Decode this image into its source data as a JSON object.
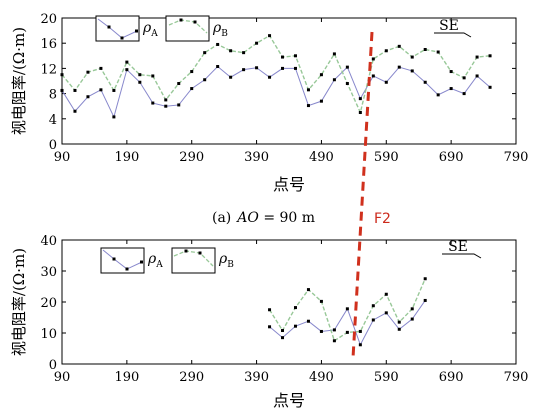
{
  "colors": {
    "rho_a": "#8888cc",
    "rho_b": "#98c898",
    "fault": "#d0301d",
    "axis": "#000000"
  },
  "caption": {
    "prefix": "(a)",
    "var": "AO",
    "rest": " = 90  m"
  },
  "fault_label": "F2",
  "chart_data": [
    {
      "type": "line",
      "ylabel": "视电阻率/(Ω·m)",
      "xlabel": "点号",
      "xlim": [
        90,
        790
      ],
      "ylim": [
        0,
        20
      ],
      "xticks": [
        "90",
        "190",
        "290",
        "390",
        "490",
        "590",
        "690",
        "790"
      ],
      "yticks": [
        "0",
        "4",
        "8",
        "12",
        "16",
        "20"
      ],
      "direction_label": "SE",
      "legend_placement": "top-left",
      "series": [
        {
          "name": "ρ",
          "subscript": "A",
          "x": [
            90,
            110,
            130,
            150,
            170,
            190,
            210,
            230,
            250,
            270,
            290,
            310,
            330,
            350,
            370,
            390,
            410,
            430,
            450,
            470,
            490,
            510,
            530,
            550,
            570,
            590,
            610,
            630,
            650,
            670,
            690,
            710,
            730,
            750
          ],
          "y": [
            8.5,
            5.2,
            7.5,
            8.6,
            4.3,
            11.8,
            9.8,
            6.5,
            6.0,
            6.2,
            8.8,
            10.2,
            12.3,
            10.6,
            11.8,
            12.1,
            10.6,
            12.0,
            12.0,
            6.1,
            6.8,
            10.2,
            12.2,
            7.2,
            10.8,
            9.8,
            12.2,
            11.6,
            9.8,
            7.8,
            8.8,
            8.0,
            10.8,
            9.0
          ]
        },
        {
          "name": "ρ",
          "subscript": "B",
          "x": [
            90,
            110,
            130,
            150,
            170,
            190,
            210,
            230,
            250,
            270,
            290,
            310,
            330,
            350,
            370,
            390,
            410,
            430,
            450,
            470,
            490,
            510,
            530,
            550,
            570,
            590,
            610,
            630,
            650,
            670,
            690,
            710,
            730,
            750
          ],
          "y": [
            11.0,
            8.5,
            11.4,
            12.0,
            8.5,
            13.0,
            11.0,
            10.8,
            7.0,
            9.6,
            11.5,
            14.5,
            15.8,
            14.8,
            14.5,
            16.0,
            17.2,
            13.8,
            14.0,
            8.6,
            11.0,
            14.3,
            9.6,
            5.0,
            13.5,
            14.8,
            15.5,
            13.8,
            15.0,
            14.6,
            11.5,
            10.5,
            13.8,
            14.0
          ]
        }
      ]
    },
    {
      "type": "line",
      "ylabel": "视电阻率/(Ω·m)",
      "xlabel": "点号",
      "xlim": [
        90,
        790
      ],
      "ylim": [
        0,
        40
      ],
      "xticks": [
        "90",
        "190",
        "290",
        "390",
        "490",
        "590",
        "690",
        "790"
      ],
      "yticks": [
        "0",
        "10",
        "20",
        "30",
        "40"
      ],
      "direction_label": "SE",
      "legend_placement": "top-left",
      "series": [
        {
          "name": "ρ",
          "subscript": "A",
          "x": [
            410,
            430,
            450,
            470,
            490,
            510,
            530,
            550,
            570,
            590,
            610,
            630,
            650
          ],
          "y": [
            12.0,
            8.5,
            12.2,
            13.8,
            10.5,
            11.0,
            17.8,
            6.2,
            14.2,
            16.5,
            11.2,
            14.5,
            20.5
          ]
        },
        {
          "name": "ρ",
          "subscript": "B",
          "x": [
            410,
            430,
            450,
            470,
            490,
            510,
            530,
            550,
            570,
            590,
            610,
            630,
            650
          ],
          "y": [
            17.5,
            10.8,
            18.2,
            24.0,
            20.2,
            7.5,
            10.2,
            10.5,
            18.8,
            22.5,
            13.5,
            17.8,
            27.5
          ]
        }
      ]
    }
  ]
}
